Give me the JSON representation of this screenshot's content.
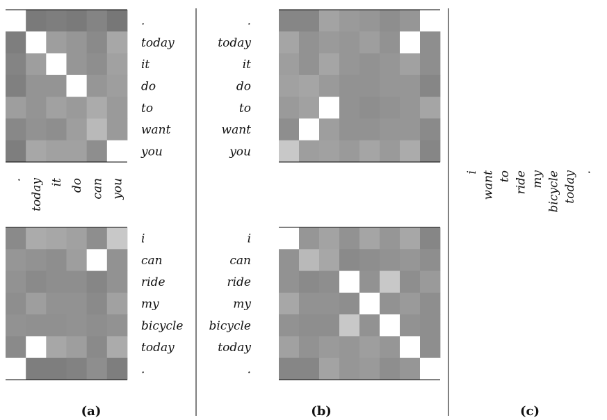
{
  "chart_data": [
    {
      "type": "heatmap",
      "panel": "a-top",
      "x_labels": [
        ".",
        "today",
        "it",
        "do",
        "can",
        "you"
      ],
      "y_labels": [
        ".",
        "today",
        "it",
        "do",
        "to",
        "want",
        "you"
      ],
      "values": [
        [
          1.0,
          0.32,
          0.34,
          0.32,
          0.37,
          0.3
        ],
        [
          0.34,
          1.0,
          0.5,
          0.46,
          0.4,
          0.55
        ],
        [
          0.37,
          0.5,
          1.0,
          0.46,
          0.42,
          0.52
        ],
        [
          0.35,
          0.45,
          0.45,
          1.0,
          0.46,
          0.5
        ],
        [
          0.5,
          0.45,
          0.52,
          0.48,
          0.57,
          0.48
        ],
        [
          0.39,
          0.44,
          0.42,
          0.5,
          0.64,
          0.48
        ],
        [
          0.34,
          0.55,
          0.52,
          0.52,
          0.42,
          1.0
        ]
      ]
    },
    {
      "type": "heatmap",
      "panel": "a-bottom",
      "x_labels": [
        ".",
        "today",
        "it",
        "do",
        "can",
        "you"
      ],
      "y_labels": [
        "i",
        "can",
        "ride",
        "my",
        "bicycle",
        "today",
        "."
      ],
      "values": [
        [
          0.4,
          0.57,
          0.55,
          0.52,
          0.42,
          0.72
        ],
        [
          0.46,
          0.44,
          0.42,
          0.5,
          1.0,
          0.44
        ],
        [
          0.44,
          0.4,
          0.42,
          0.42,
          0.38,
          0.44
        ],
        [
          0.42,
          0.5,
          0.44,
          0.44,
          0.4,
          0.52
        ],
        [
          0.44,
          0.43,
          0.43,
          0.44,
          0.42,
          0.44
        ],
        [
          0.4,
          1.0,
          0.55,
          0.5,
          0.4,
          0.57
        ],
        [
          1.0,
          0.34,
          0.34,
          0.36,
          0.42,
          0.34
        ]
      ]
    },
    {
      "type": "heatmap",
      "panel": "b-top",
      "x_labels": [
        "i",
        "want",
        "to",
        "ride",
        "my",
        "bicycle",
        "today",
        "."
      ],
      "y_labels": [
        ".",
        "today",
        "it",
        "do",
        "to",
        "want",
        "you"
      ],
      "values": [
        [
          0.38,
          0.38,
          0.53,
          0.48,
          0.46,
          0.42,
          0.46,
          1.0
        ],
        [
          0.54,
          0.44,
          0.48,
          0.46,
          0.5,
          0.44,
          1.0,
          0.42
        ],
        [
          0.5,
          0.44,
          0.54,
          0.46,
          0.44,
          0.46,
          0.52,
          0.42
        ],
        [
          0.52,
          0.54,
          0.48,
          0.44,
          0.44,
          0.46,
          0.46,
          0.38
        ],
        [
          0.48,
          0.52,
          1.0,
          0.44,
          0.42,
          0.44,
          0.46,
          0.54
        ],
        [
          0.42,
          1.0,
          0.5,
          0.44,
          0.44,
          0.46,
          0.46,
          0.4
        ],
        [
          0.72,
          0.5,
          0.52,
          0.48,
          0.54,
          0.48,
          0.57,
          0.38
        ]
      ]
    },
    {
      "type": "heatmap",
      "panel": "b-bottom",
      "x_labels": [
        "i",
        "want",
        "to",
        "ride",
        "my",
        "bicycle",
        "today",
        "."
      ],
      "y_labels": [
        "i",
        "can",
        "ride",
        "my",
        "bicycle",
        "today",
        "."
      ],
      "values": [
        [
          1.0,
          0.46,
          0.53,
          0.44,
          0.54,
          0.46,
          0.55,
          0.38
        ],
        [
          0.44,
          0.64,
          0.55,
          0.4,
          0.42,
          0.44,
          0.46,
          0.42
        ],
        [
          0.44,
          0.4,
          0.42,
          1.0,
          0.44,
          0.72,
          0.42,
          0.48
        ],
        [
          0.55,
          0.44,
          0.44,
          0.42,
          1.0,
          0.44,
          0.48,
          0.42
        ],
        [
          0.44,
          0.42,
          0.42,
          0.72,
          0.44,
          1.0,
          0.44,
          0.42
        ],
        [
          0.52,
          0.44,
          0.48,
          0.46,
          0.5,
          0.46,
          1.0,
          0.42
        ],
        [
          0.38,
          0.38,
          0.53,
          0.46,
          0.48,
          0.42,
          0.46,
          1.0
        ]
      ]
    }
  ],
  "panel_c_words": [
    "i",
    "want",
    "to",
    "ride",
    "my",
    "bicycle",
    "today",
    "."
  ],
  "captions": {
    "a": "(a)",
    "b": "(b)",
    "c": "(c)"
  },
  "colors": {
    "min_cell": "#3c3c3c",
    "max_cell": "#ffffff",
    "rule": "#000000"
  }
}
